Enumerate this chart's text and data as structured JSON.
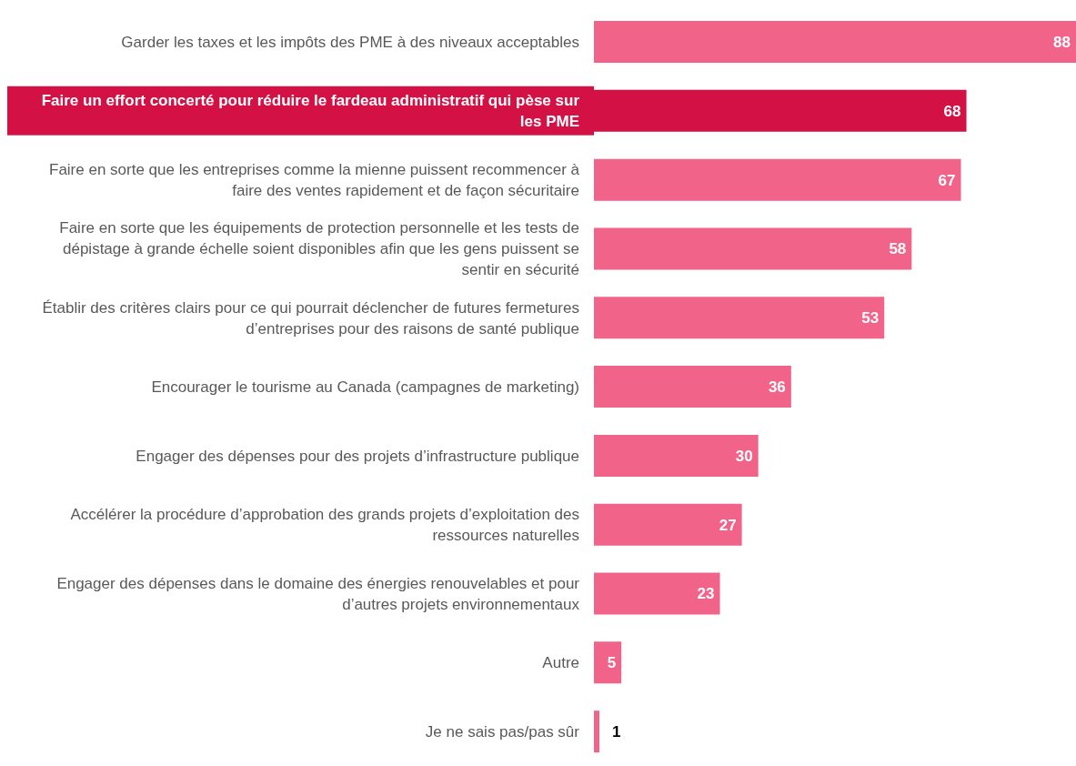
{
  "chart_data": {
    "type": "bar",
    "orientation": "horizontal",
    "data_labels": true,
    "categories": [
      "Garder les taxes et les impôts des PME à des niveaux acceptables",
      "Faire un effort concerté pour réduire le fardeau administratif qui pèse sur les PME",
      "Faire en sorte que les entreprises comme la mienne puissent recommencer à faire des ventes rapidement et de façon sécuritaire",
      "Faire en sorte que les équipements de protection personnelle et les tests de dépistage à grande échelle soient disponibles afin que les gens puissent se sentir en sécurité",
      "Établir des critères clairs pour ce qui pourrait déclencher de futures fermetures d’entreprises pour des raisons de santé publique",
      "Encourager le tourisme au Canada (campagnes de marketing)",
      "Engager des dépenses pour des projets d’infrastructure publique",
      "Accélérer la procédure d’approbation des grands projets d’exploitation des ressources naturelles",
      "Engager des dépenses dans le domaine des énergies renouvelables et pour d’autres projets environnementaux",
      "Autre",
      "Je ne sais pas/pas sûr"
    ],
    "values": [
      88,
      68,
      67,
      58,
      53,
      36,
      30,
      27,
      23,
      5,
      1
    ],
    "colors": [
      "#f26389",
      "#d41145",
      "#f26389",
      "#f26389",
      "#f26389",
      "#f26389",
      "#f26389",
      "#f26389",
      "#f26389",
      "#f26389",
      "#f26389"
    ]
  }
}
